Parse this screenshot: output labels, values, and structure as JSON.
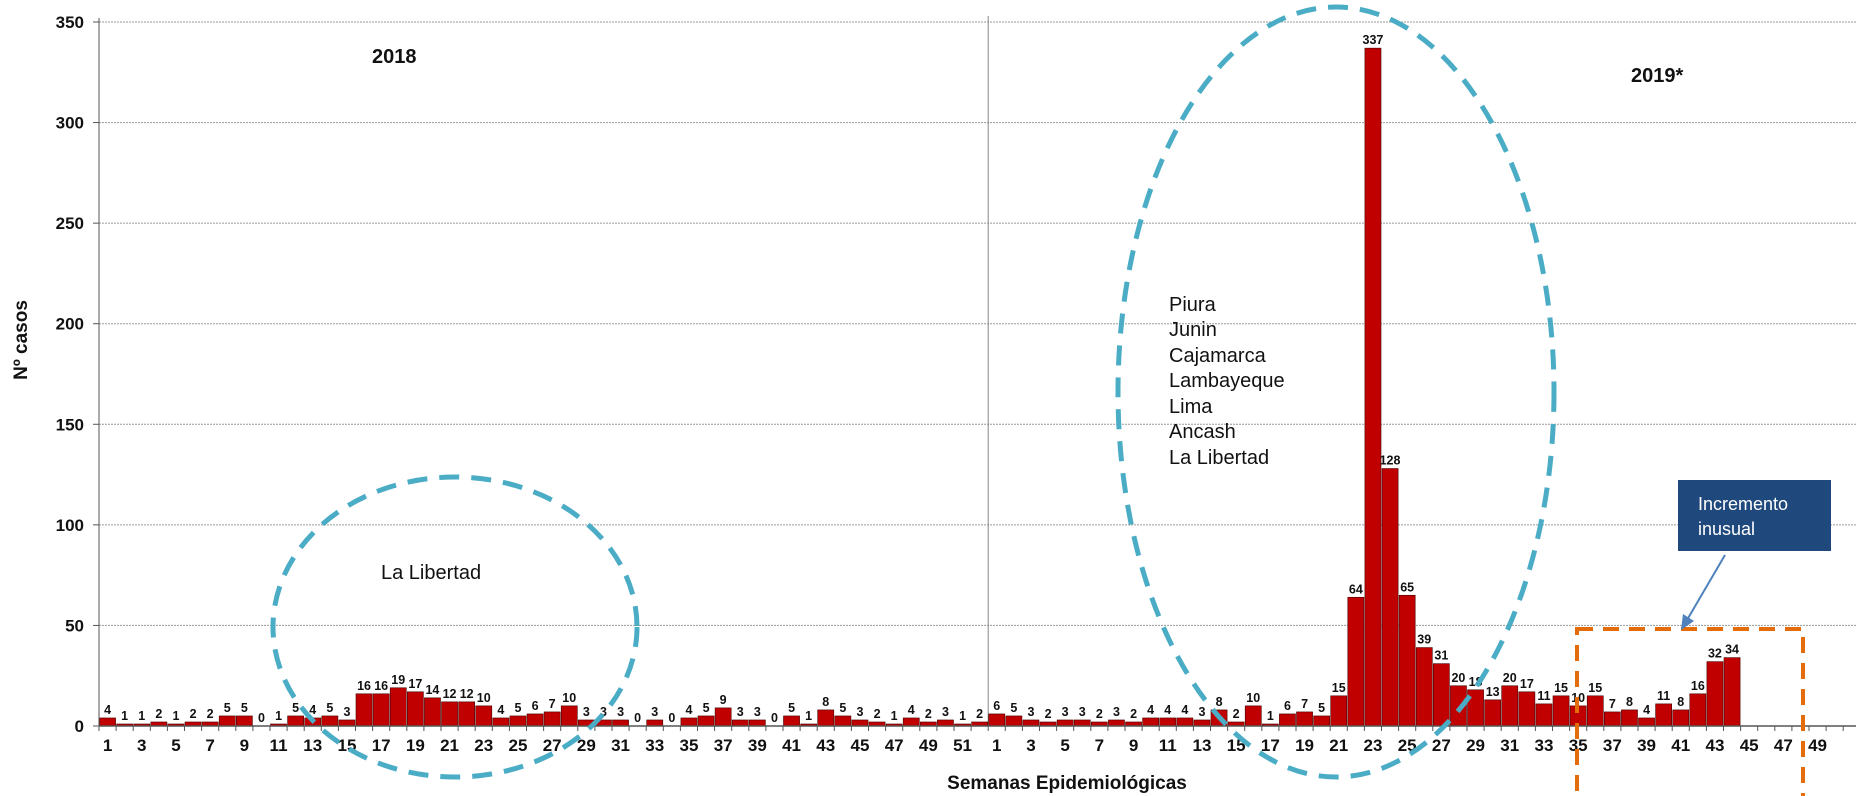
{
  "chart_data": {
    "type": "bar",
    "title": "",
    "xlabel": "Semanas Epidemiológicas",
    "ylabel": "Nº casos",
    "ylim": [
      0,
      350
    ],
    "yticks": [
      0,
      50,
      100,
      150,
      200,
      250,
      300,
      350
    ],
    "grid": true,
    "bar_color": "#C00000",
    "years": [
      {
        "label": "2018",
        "weeks": 52,
        "values": [
          4,
          1,
          1,
          2,
          1,
          2,
          2,
          5,
          5,
          0,
          1,
          5,
          4,
          5,
          3,
          16,
          16,
          19,
          17,
          14,
          12,
          12,
          10,
          4,
          5,
          6,
          7,
          10,
          3,
          3,
          3,
          0,
          3,
          0,
          4,
          5,
          9,
          3,
          3,
          0,
          5,
          1,
          8,
          5,
          3,
          2,
          1,
          4,
          2,
          3,
          1,
          2
        ]
      },
      {
        "label": "2019*",
        "weeks": 52,
        "values": [
          6,
          5,
          3,
          2,
          3,
          3,
          2,
          3,
          2,
          4,
          4,
          4,
          3,
          8,
          2,
          10,
          1,
          6,
          7,
          5,
          15,
          64,
          337,
          128,
          65,
          39,
          31,
          20,
          18,
          13,
          20,
          17,
          11,
          15,
          10,
          15,
          7,
          8,
          4,
          11,
          8,
          16,
          32,
          34
        ]
      }
    ],
    "annotations": {
      "region_2018": "La Libertad",
      "regions_2019": [
        "Piura",
        "Junin",
        "Cajamarca",
        "Lambayeque",
        "Lima",
        "Ancash",
        "La Libertad"
      ],
      "callout": [
        "Incremento",
        "inusual"
      ]
    },
    "colors": {
      "ellipse": "#4BACC6",
      "box": "#E46C0A",
      "callout_bg": "#1F497D",
      "arrow": "#4F81BD"
    }
  }
}
